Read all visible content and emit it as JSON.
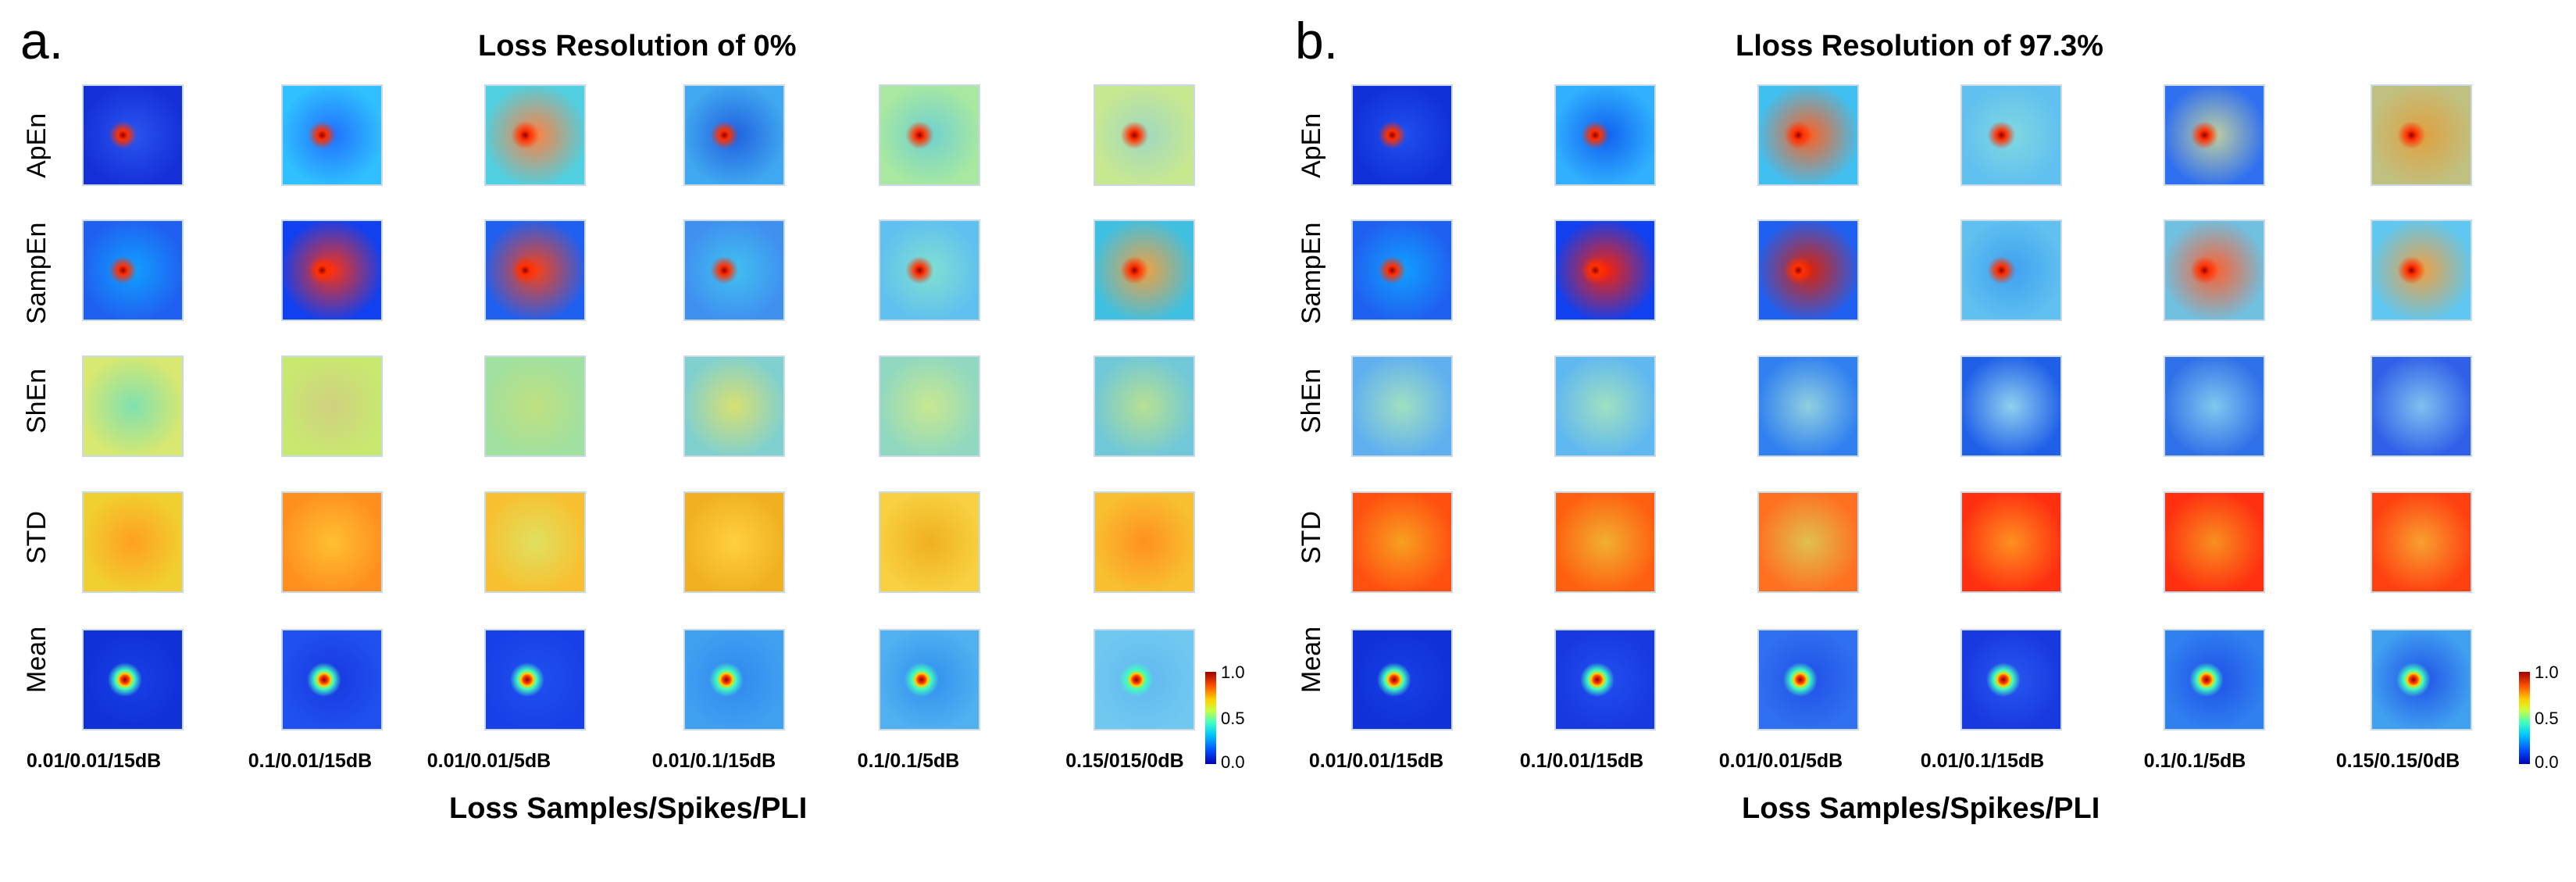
{
  "panels": [
    {
      "letter": "a.",
      "title": "Loss Resolution of 0%",
      "row_labels": [
        "ApEn",
        "SampEn",
        "ShEn",
        "STD",
        "Mean"
      ],
      "col_labels": [
        "0.01/0.01/15dB",
        "0.1/0.01/15dB",
        "0.01/0.01/5dB",
        "0.01/0.1/15dB",
        "0.1/0.1/5dB",
        "0.15/015/0dB"
      ],
      "xlabel": "Loss Samples/Spikes/PLI",
      "colorbar_ticks": [
        "1.0",
        "0.5",
        "0.0"
      ]
    },
    {
      "letter": "b.",
      "title": "Lloss Resolution of 97.3%",
      "row_labels": [
        "ApEn",
        "SampEn",
        "ShEn",
        "STD",
        "Mean"
      ],
      "col_labels": [
        "0.01/0.01/15dB",
        "0.1/0.01/15dB",
        "0.01/0.01/5dB",
        "0.01/0.1/15dB",
        "0.1/0.1/5dB",
        "0.15/0.15/0dB"
      ],
      "xlabel": "Loss Samples/Spikes/PLI",
      "colorbar_ticks": [
        "1.0",
        "0.5",
        "0.0"
      ]
    }
  ],
  "colormap": [
    "#00008f",
    "#0040ff",
    "#00c0ff",
    "#40ffc0",
    "#c0ff40",
    "#ffc000",
    "#ff4000",
    "#8f0000"
  ]
}
